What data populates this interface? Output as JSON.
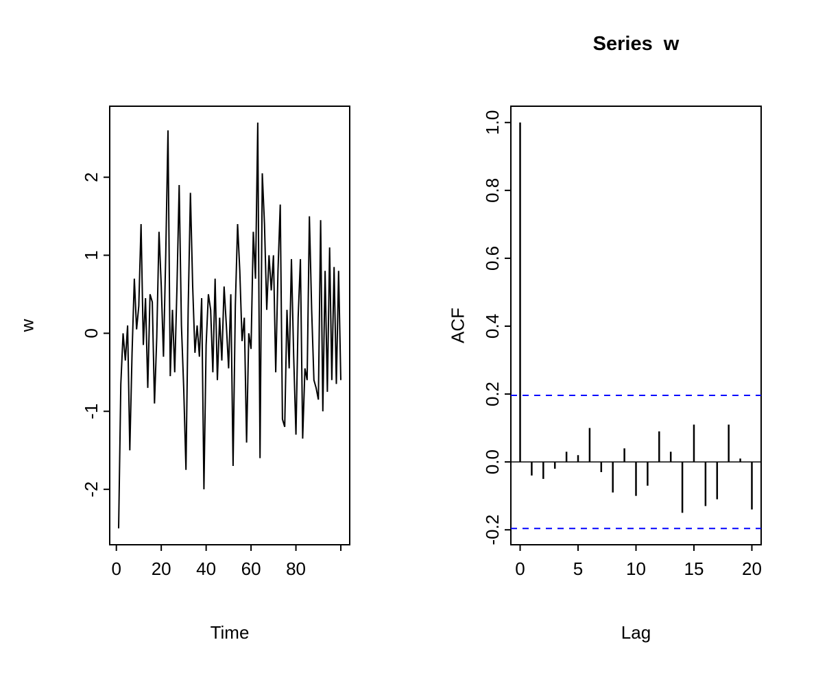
{
  "figure": {
    "background": "#ffffff"
  },
  "chart_data": [
    {
      "type": "line",
      "title": "",
      "xlabel": "Time",
      "ylabel": "w",
      "series_name": "w",
      "x_start": 1,
      "values": [
        -2.5,
        -0.65,
        0.0,
        -0.35,
        0.1,
        -1.5,
        -0.25,
        0.7,
        0.05,
        0.35,
        1.4,
        -0.15,
        0.45,
        -0.7,
        0.5,
        0.4,
        -0.9,
        -0.05,
        1.3,
        0.6,
        -0.3,
        1.0,
        2.6,
        -0.55,
        0.3,
        -0.5,
        0.6,
        1.9,
        0.1,
        -0.7,
        -1.75,
        0.3,
        1.8,
        0.6,
        -0.25,
        0.1,
        -0.3,
        0.45,
        -2.0,
        -0.15,
        0.5,
        0.3,
        -0.5,
        0.7,
        -0.6,
        0.2,
        -0.35,
        0.6,
        0.1,
        -0.45,
        0.5,
        -1.7,
        0.35,
        1.4,
        0.8,
        -0.1,
        0.2,
        -1.4,
        0.0,
        -0.2,
        1.3,
        0.7,
        2.7,
        -1.6,
        2.05,
        1.4,
        0.3,
        1.0,
        0.55,
        1.0,
        -0.5,
        0.8,
        1.65,
        -1.1,
        -1.2,
        0.3,
        -0.45,
        0.95,
        -0.3,
        -1.3,
        0.2,
        0.95,
        -1.35,
        -0.45,
        -0.6,
        1.5,
        0.3,
        -0.6,
        -0.7,
        -0.85,
        1.45,
        -1.0,
        0.8,
        -0.75,
        1.1,
        -0.6,
        0.85,
        -0.65,
        0.8,
        -0.6
      ],
      "x_ticks": [
        0,
        20,
        40,
        60,
        80,
        100
      ],
      "x_tick_labels": [
        "0",
        "20",
        "40",
        "60",
        "80",
        ""
      ],
      "y_ticks": [
        -2,
        -1,
        0,
        1,
        2
      ],
      "y_tick_labels": [
        "-2",
        "-1",
        "0",
        "1",
        "2"
      ],
      "x_range": [
        -2.96,
        103.96
      ],
      "y_range": [
        -2.71,
        2.91
      ],
      "line_color": "#000000"
    },
    {
      "type": "bar",
      "title": "Series  w",
      "xlabel": "Lag",
      "ylabel": "ACF",
      "lag_start": 0,
      "values": [
        1.0,
        -0.04,
        -0.05,
        -0.02,
        0.03,
        0.02,
        0.1,
        -0.03,
        -0.09,
        0.04,
        -0.1,
        -0.07,
        0.09,
        0.03,
        -0.15,
        0.11,
        -0.13,
        -0.11,
        0.11,
        0.01,
        -0.14
      ],
      "conf_level": 0.196,
      "conf_line_color": "#0000ff",
      "bar_color": "#000000",
      "x_ticks": [
        0,
        5,
        10,
        15,
        20
      ],
      "x_tick_labels": [
        "0",
        "5",
        "10",
        "15",
        "20"
      ],
      "y_ticks": [
        -0.2,
        0.0,
        0.2,
        0.4,
        0.6,
        0.8,
        1.0
      ],
      "y_tick_labels": [
        "-0.2",
        "0.0",
        "0.2",
        "0.4",
        "0.6",
        "0.8",
        "1.0"
      ],
      "x_range": [
        -0.8,
        20.8
      ],
      "y_range": [
        -0.244,
        1.048
      ]
    }
  ]
}
